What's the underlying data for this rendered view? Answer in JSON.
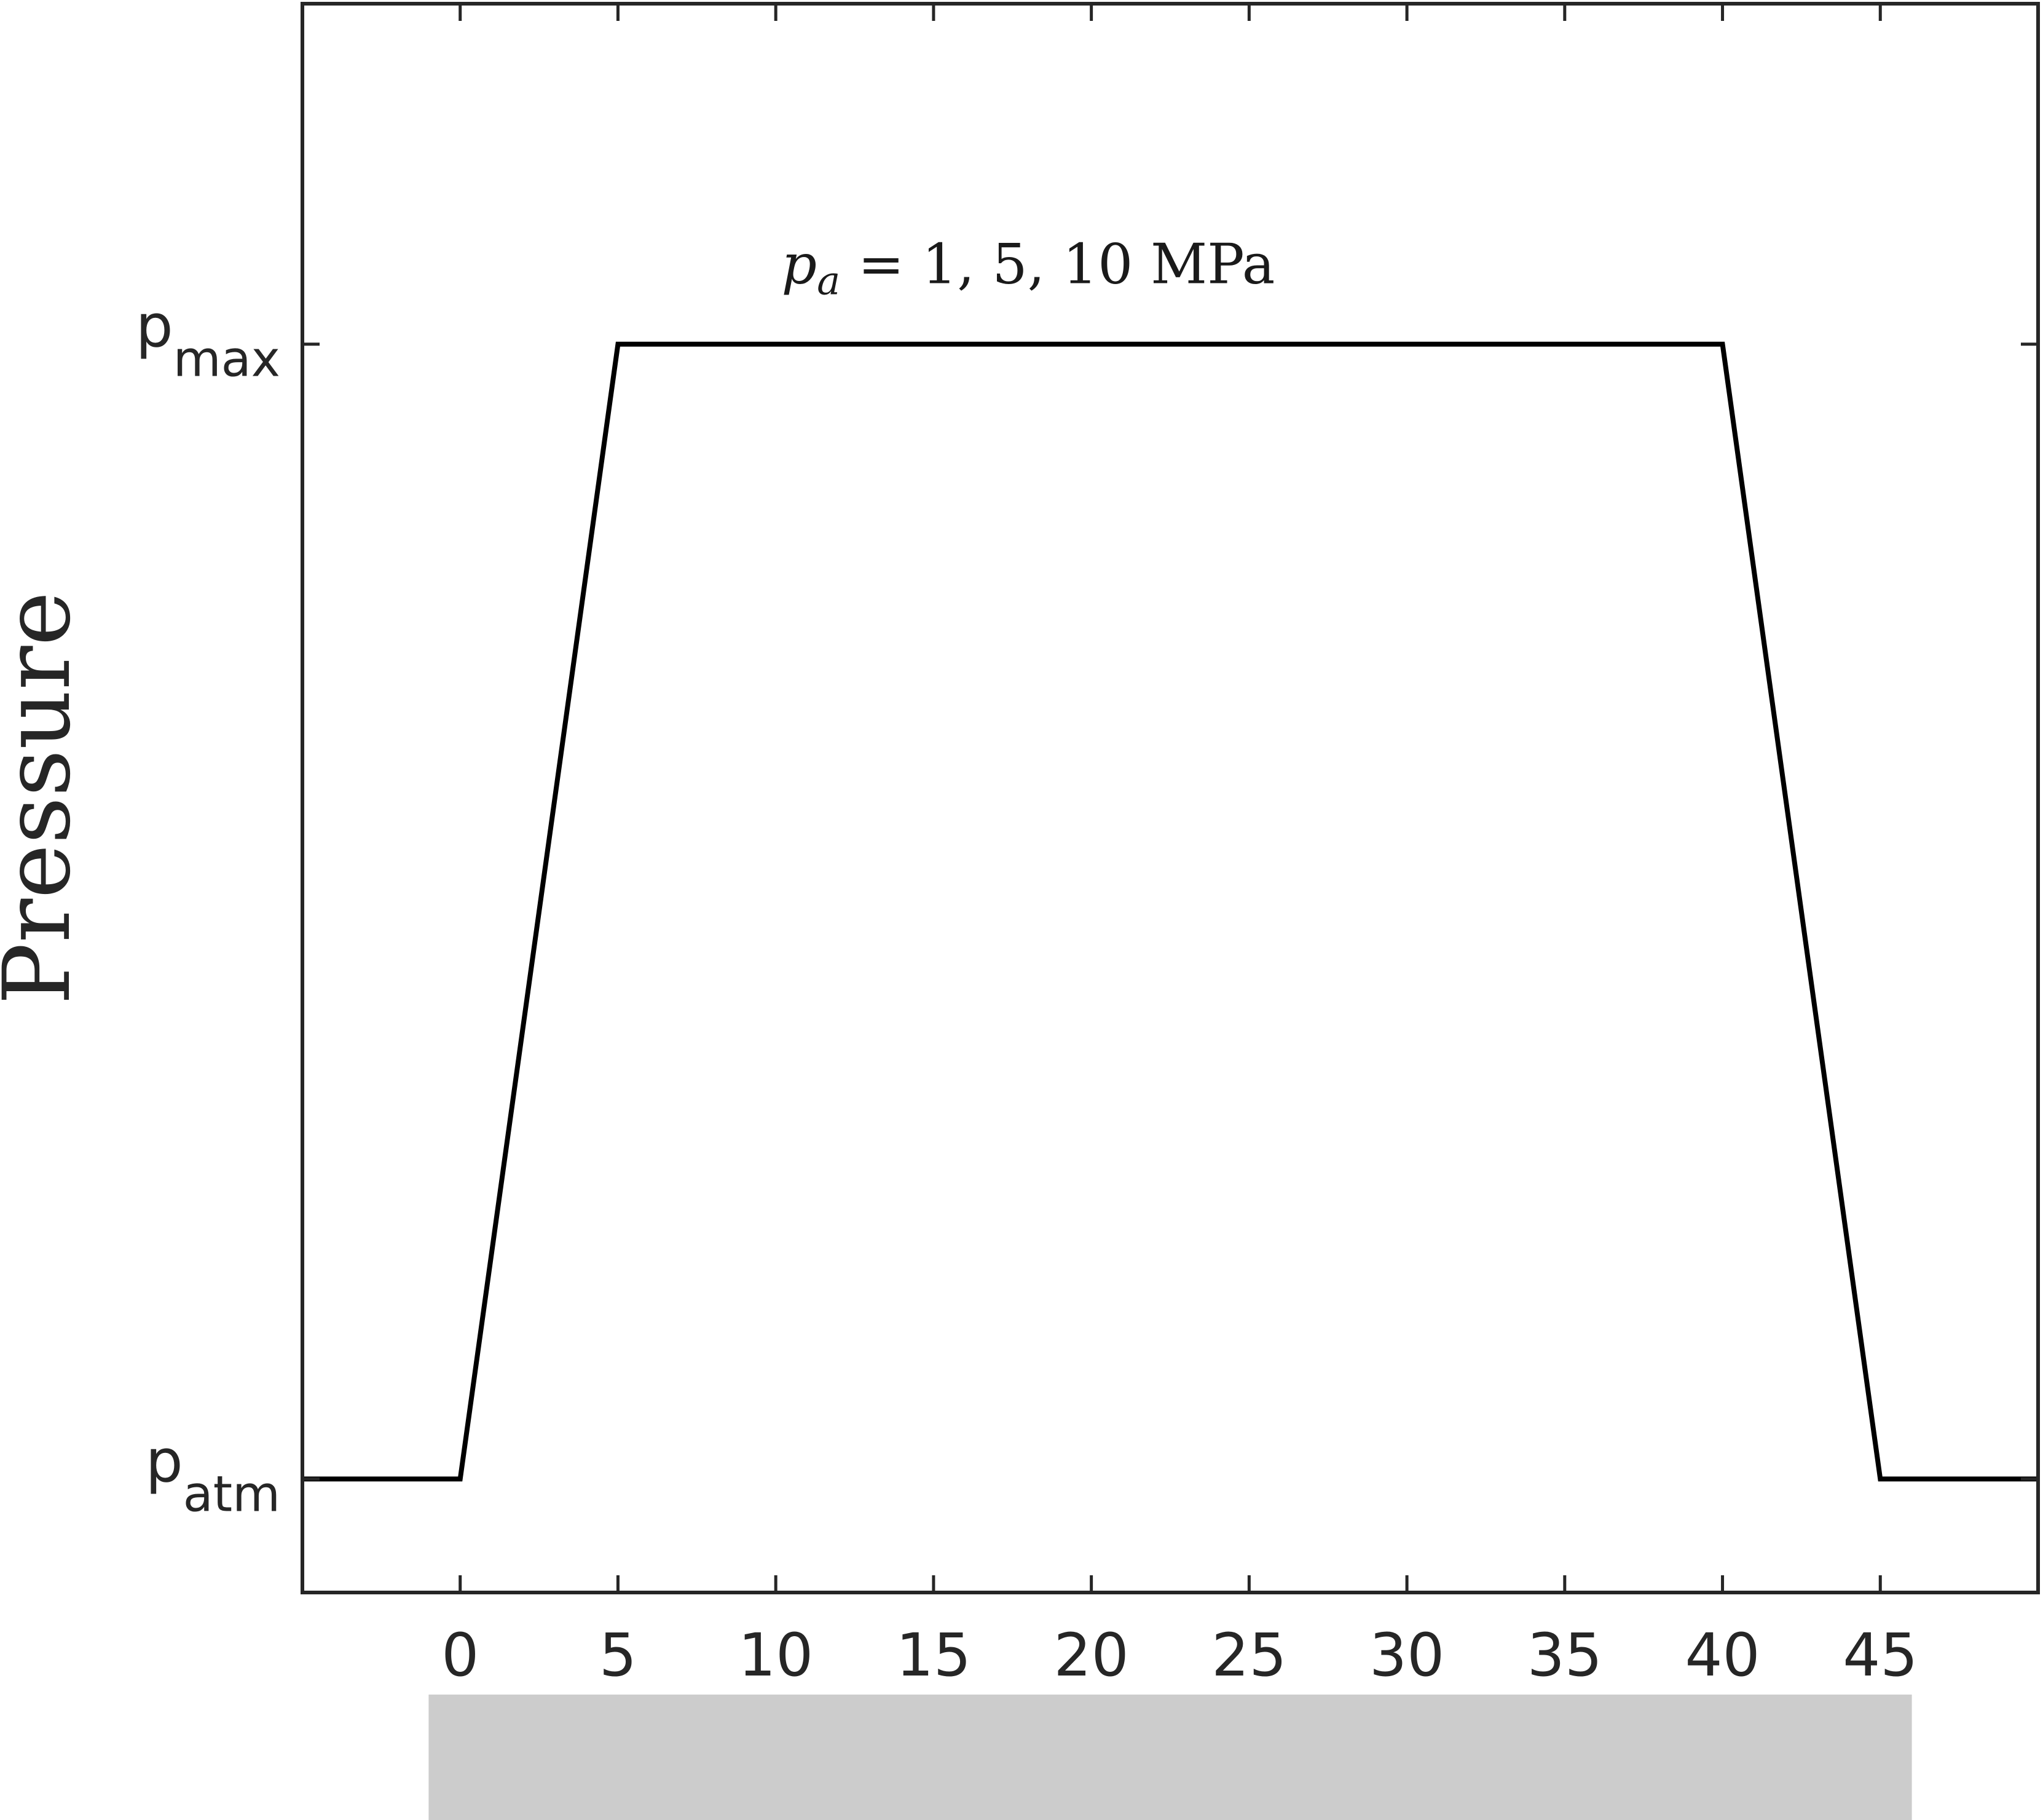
{
  "chart_data": {
    "type": "line",
    "title": "",
    "xlabel": "",
    "ylabel": "Pressure",
    "xlim": [
      -5,
      50
    ],
    "ylim": [
      -0.1,
      1.3
    ],
    "grid": false,
    "legend": "none",
    "xticks": [
      0,
      5,
      10,
      15,
      20,
      25,
      30,
      35,
      40,
      45
    ],
    "xtick_labels": [
      "0",
      "5",
      "10",
      "15",
      "20",
      "25",
      "30",
      "35",
      "40",
      "45"
    ],
    "yticks": [
      {
        "value": 0,
        "base": "p",
        "sub": "atm"
      },
      {
        "value": 1,
        "base": "p",
        "sub": "max"
      }
    ],
    "series": [
      {
        "x": [
          -5,
          0,
          5,
          40,
          45,
          50
        ],
        "y": [
          0,
          0,
          1,
          1,
          0,
          0
        ],
        "color": "#000000"
      }
    ],
    "annotation": {
      "symbol": "p",
      "subscript": "a",
      "text": " = 1, 5, 10 MPa",
      "x": 18,
      "y": 1.07
    },
    "shaded_band": {
      "x": [
        -1,
        46
      ],
      "color": "#cccccc"
    }
  }
}
